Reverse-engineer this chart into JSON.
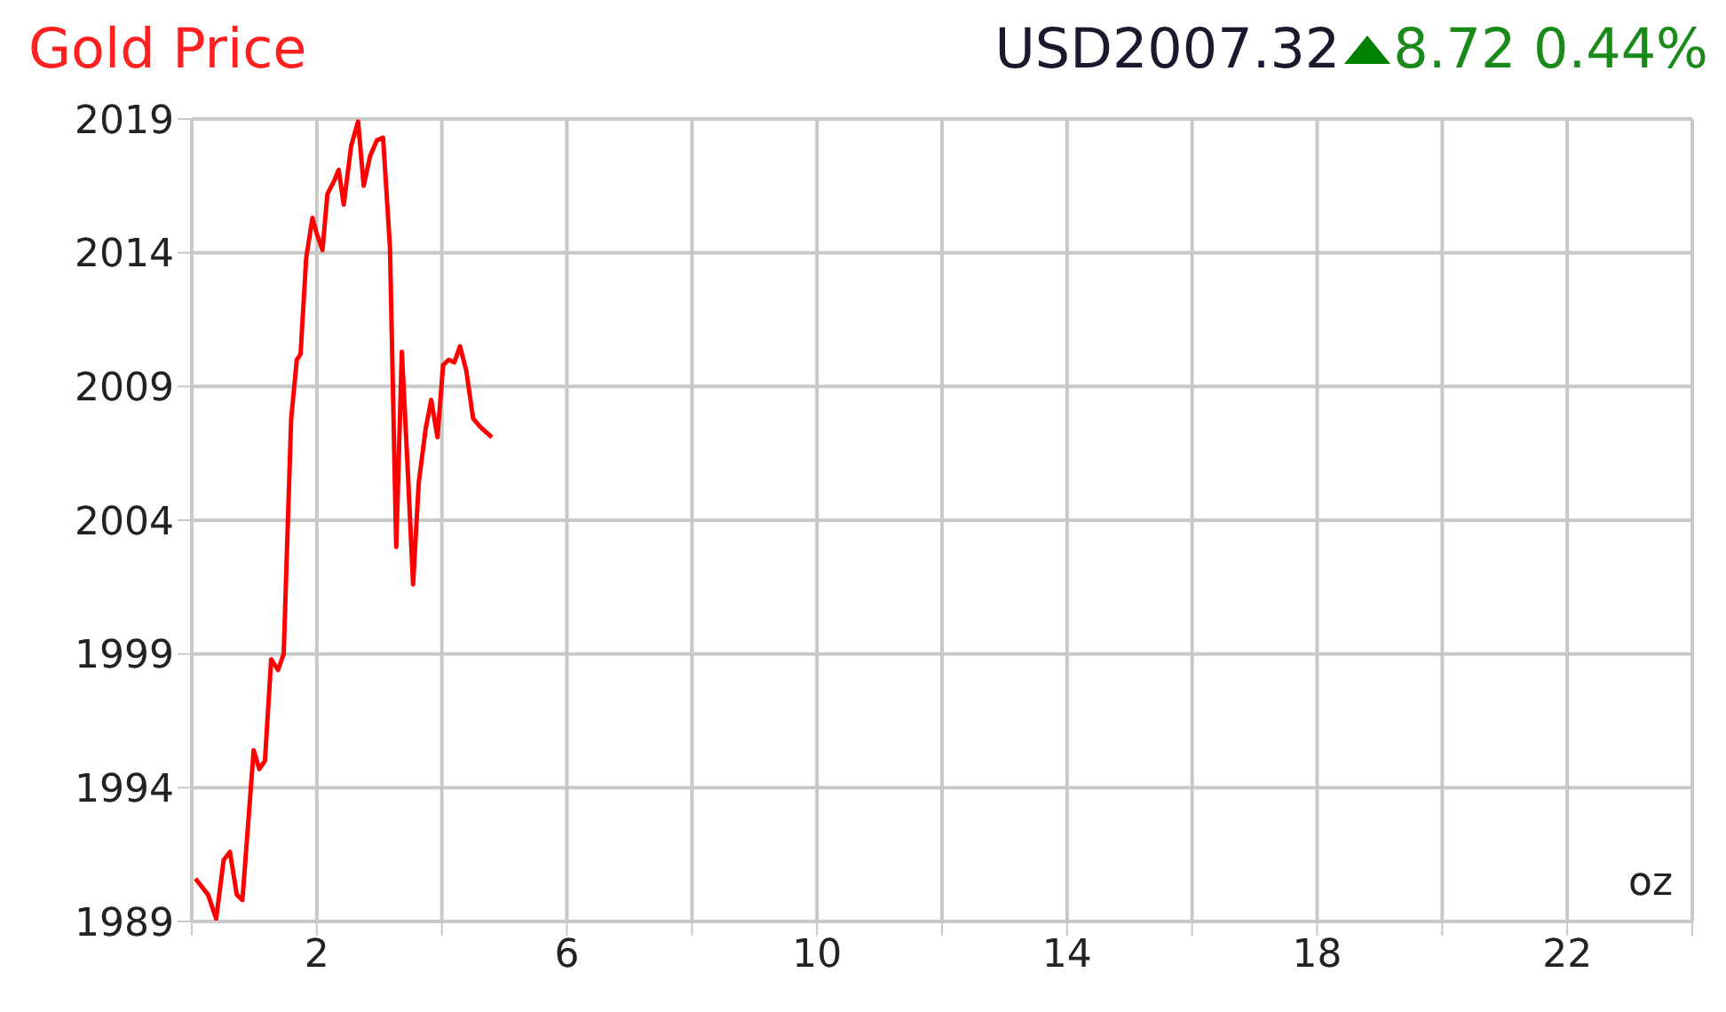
{
  "chart_data": {
    "type": "line",
    "title": "Gold Price",
    "subtitle": "USD2007.32",
    "annotations": [
      "8.72 0.44%",
      "oz"
    ],
    "x": [
      0.06,
      0.26,
      0.39,
      0.51,
      0.61,
      0.72,
      0.81,
      0.99,
      1.08,
      1.17,
      1.27,
      1.38,
      1.47,
      1.59,
      1.68,
      1.74,
      1.83,
      1.93,
      2.0,
      2.09,
      2.17,
      2.28,
      2.35,
      2.43,
      2.55,
      2.66,
      2.75,
      2.85,
      2.96,
      3.06,
      3.17,
      3.27,
      3.36,
      3.45,
      3.54,
      3.63,
      3.74,
      3.83,
      3.93,
      4.02,
      4.11,
      4.2,
      4.29,
      4.39,
      4.5,
      4.61,
      4.8
    ],
    "series": [
      {
        "color": "#ff0000",
        "values": [
          1990.6,
          1990.0,
          1989.1,
          1991.3,
          1991.6,
          1990.0,
          1989.8,
          1995.4,
          1994.7,
          1995.0,
          1998.8,
          1998.4,
          1999.0,
          2007.8,
          2010.0,
          2010.2,
          2013.8,
          2015.3,
          2014.7,
          2014.1,
          2016.2,
          2016.7,
          2017.1,
          2015.8,
          2018.0,
          2018.9,
          2016.5,
          2017.6,
          2018.2,
          2018.3,
          2014.2,
          2003.0,
          2010.3,
          2006.1,
          2001.6,
          2005.4,
          2007.4,
          2008.5,
          2007.1,
          2009.8,
          2010.0,
          2009.9,
          2010.5,
          2009.6,
          2007.8,
          2007.5,
          2007.1
        ]
      }
    ],
    "xlim": [
      0,
      24
    ],
    "xticks": [
      {
        "value": 0,
        "label": null
      },
      2,
      {
        "value": 4,
        "label": null
      },
      6,
      {
        "value": 8,
        "label": null
      },
      10,
      {
        "value": 12,
        "label": null
      },
      14,
      {
        "value": 16,
        "label": null
      },
      18,
      {
        "value": 20,
        "label": null
      },
      22,
      {
        "value": 24,
        "label": null
      }
    ],
    "ylim": [
      1989,
      2019
    ],
    "yticks": [
      1989,
      1994,
      1999,
      2004,
      2009,
      2014,
      2019
    ],
    "grid": true,
    "marker": "none",
    "line_style": "solid"
  }
}
